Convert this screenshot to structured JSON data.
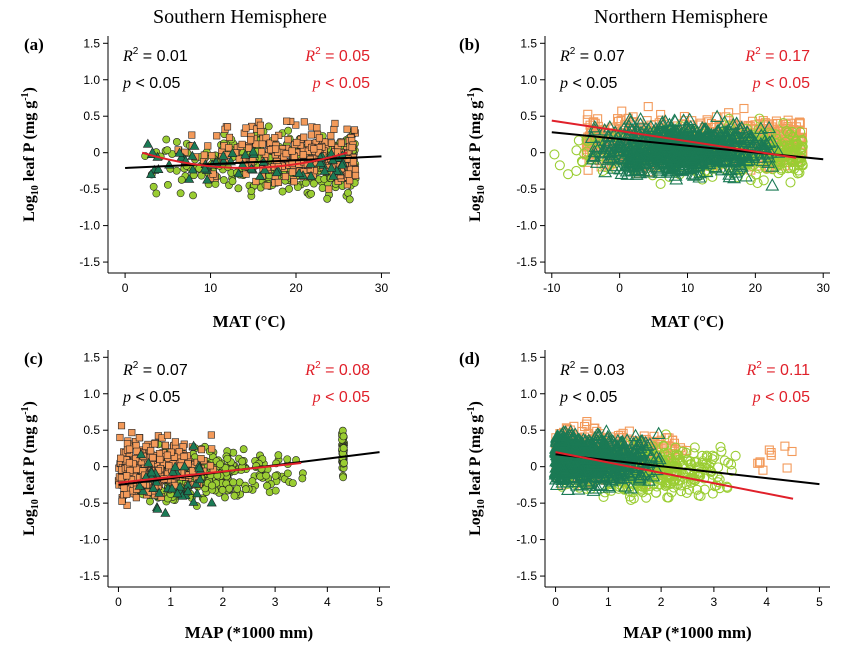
{
  "figure": {
    "column_titles": [
      "Southern Hemisphere",
      "Northern Hemisphere"
    ],
    "legend_note": "Point colours: dark green = trees/needle group, yellow-green = broadleaf group, orange = shrubs/herbs group (markers: Southern filled, Northern open)"
  },
  "colors": {
    "dark_green": "#1b7a55",
    "yellow_green": "#9acd32",
    "orange": "#f39a5a",
    "fit_all": "#000000",
    "fit_subset": "#e0202a"
  },
  "chart_data": [
    {
      "panel": "(a)",
      "type": "scatter",
      "hemisphere": "Southern Hemisphere",
      "xlabel": "MAT (°C)",
      "ylabel_main": "Log",
      "ylabel_sub": "10",
      "ylabel_rest": " leaf P (mg g",
      "ylabel_sup": "-1",
      "ylabel_end": ")",
      "xlim": [
        -2,
        31
      ],
      "ylim": [
        -1.65,
        1.6
      ],
      "xticks": [
        0,
        10,
        20,
        30
      ],
      "xtick_labels": [
        "0",
        "10",
        "20",
        "30"
      ],
      "yticks": [
        -1.5,
        -1.0,
        -0.5,
        0,
        0.5,
        1.0,
        1.5
      ],
      "ytick_labels": [
        "-1.5",
        "-1.0",
        "-0.5",
        "0",
        "0.5",
        "1.0",
        "1.5"
      ],
      "marker_style": "filled",
      "fit_black": {
        "x": [
          0,
          30
        ],
        "y": [
          -0.21,
          -0.05
        ]
      },
      "fit_red": {
        "x": [
          2,
          26
        ],
        "y": [
          0.0,
          0.0
        ],
        "shape": "u",
        "xmid": 14,
        "ymid": -0.21
      },
      "annotation_black": {
        "r2": "0.01",
        "p": "p < 0.05"
      },
      "annotation_red": {
        "r2": "0.05",
        "p": "p < 0.05"
      },
      "clusters": [
        {
          "color": "yellow_green",
          "shape": "circle",
          "n": 420,
          "x_range": [
            2,
            27
          ],
          "y_center": -0.15,
          "y_spread": 0.35,
          "x_weight": "high"
        },
        {
          "color": "orange",
          "shape": "square",
          "n": 280,
          "x_range": [
            5,
            27
          ],
          "y_center": -0.05,
          "y_spread": 0.35,
          "x_weight": "high"
        },
        {
          "color": "dark_green",
          "shape": "triangle",
          "n": 60,
          "x_range": [
            2,
            26
          ],
          "y_center": -0.15,
          "y_spread": 0.2,
          "x_weight": "flat"
        }
      ]
    },
    {
      "panel": "(b)",
      "type": "scatter",
      "hemisphere": "Northern Hemisphere",
      "xlabel": "MAT (°C)",
      "ylabel_main": "Log",
      "ylabel_sub": "10",
      "ylabel_rest": " leaf P (mg g",
      "ylabel_sup": "-1",
      "ylabel_end": ")",
      "xlim": [
        -11,
        31
      ],
      "ylim": [
        -1.65,
        1.6
      ],
      "xticks": [
        -10,
        0,
        10,
        20,
        30
      ],
      "xtick_labels": [
        "-10",
        "0",
        "10",
        "20",
        "30"
      ],
      "yticks": [
        -1.5,
        -1.0,
        -0.5,
        0,
        0.5,
        1.0,
        1.5
      ],
      "ytick_labels": [
        "-1.5",
        "-1.0",
        "-0.5",
        "0",
        "0.5",
        "1.0",
        "1.5"
      ],
      "marker_style": "open",
      "fit_black": {
        "x": [
          -10,
          30
        ],
        "y": [
          0.28,
          -0.09
        ]
      },
      "fit_red": {
        "x": [
          -10,
          26
        ],
        "y": [
          0.44,
          -0.07
        ]
      },
      "annotation_black": {
        "r2": "0.07",
        "p": "p < 0.05"
      },
      "annotation_red": {
        "r2": "0.17",
        "p": "p < 0.05"
      },
      "clusters": [
        {
          "color": "orange",
          "shape": "square",
          "n": 700,
          "x_range": [
            -5,
            27
          ],
          "y_center": 0.15,
          "y_spread": 0.3,
          "x_weight": "flat"
        },
        {
          "color": "yellow_green",
          "shape": "circle",
          "n": 420,
          "x_range": [
            -10,
            27
          ],
          "y_center": 0.0,
          "y_spread": 0.3,
          "x_weight": "high"
        },
        {
          "color": "dark_green",
          "shape": "triangle",
          "n": 750,
          "x_range": [
            -5,
            24
          ],
          "y_center": 0.05,
          "y_spread": 0.3,
          "x_weight": "mid"
        }
      ]
    },
    {
      "panel": "(c)",
      "type": "scatter",
      "hemisphere": "Southern Hemisphere",
      "xlabel": "MAP (*1000 mm)",
      "ylabel_main": "Log",
      "ylabel_sub": "10",
      "ylabel_rest": " leaf P (mg g",
      "ylabel_sup": "-1",
      "ylabel_end": ")",
      "xlim": [
        -0.2,
        5.2
      ],
      "ylim": [
        -1.65,
        1.6
      ],
      "xticks": [
        0,
        1,
        2,
        3,
        4,
        5
      ],
      "xtick_labels": [
        "0",
        "1",
        "2",
        "3",
        "4",
        "5"
      ],
      "yticks": [
        -1.5,
        -1.0,
        -0.5,
        0,
        0.5,
        1.0,
        1.5
      ],
      "ytick_labels": [
        "-1.5",
        "-1.0",
        "-0.5",
        "0",
        "0.5",
        "1.0",
        "1.5"
      ],
      "marker_style": "filled",
      "fit_black": {
        "x": [
          0,
          5
        ],
        "y": [
          -0.25,
          0.2
        ]
      },
      "fit_red": {
        "x": [
          0,
          3.5
        ],
        "y": [
          -0.22,
          0.05
        ]
      },
      "annotation_black": {
        "r2": "0.07",
        "p": "p < 0.05"
      },
      "annotation_red": {
        "r2": "0.08",
        "p": "p < 0.05"
      },
      "clusters": [
        {
          "color": "yellow_green",
          "shape": "circle",
          "n": 500,
          "x_range": [
            0.3,
            3.6
          ],
          "y_center": -0.1,
          "y_spread": 0.3,
          "x_weight": "low"
        },
        {
          "color": "orange",
          "shape": "square",
          "n": 300,
          "x_range": [
            0.0,
            2.0
          ],
          "y_center": 0.0,
          "y_spread": 0.35,
          "x_weight": "low"
        },
        {
          "color": "dark_green",
          "shape": "triangle",
          "n": 40,
          "x_range": [
            0.4,
            1.8
          ],
          "y_center": -0.3,
          "y_spread": 0.35,
          "x_weight": "flat"
        },
        {
          "color": "yellow_green",
          "shape": "circle",
          "n": 60,
          "x_range": [
            4.28,
            4.32
          ],
          "y_center": 0.2,
          "y_spread": 0.25,
          "x_weight": "flat"
        }
      ]
    },
    {
      "panel": "(d)",
      "type": "scatter",
      "hemisphere": "Northern Hemisphere",
      "xlabel": "MAP (*1000 mm)",
      "ylabel_main": "Log",
      "ylabel_sub": "10",
      "ylabel_rest": " leaf P (mg g",
      "ylabel_sup": "-1",
      "ylabel_end": ")",
      "xlim": [
        -0.2,
        5.2
      ],
      "ylim": [
        -1.65,
        1.6
      ],
      "xticks": [
        0,
        1,
        2,
        3,
        4,
        5
      ],
      "xtick_labels": [
        "0",
        "1",
        "2",
        "3",
        "4",
        "5"
      ],
      "yticks": [
        -1.5,
        -1.0,
        -0.5,
        0,
        0.5,
        1.0,
        1.5
      ],
      "ytick_labels": [
        "-1.5",
        "-1.0",
        "-0.5",
        "0",
        "0.5",
        "1.0",
        "1.5"
      ],
      "marker_style": "open",
      "fit_black": {
        "x": [
          0,
          5
        ],
        "y": [
          0.17,
          -0.24
        ]
      },
      "fit_red": {
        "x": [
          0,
          4.5
        ],
        "y": [
          0.2,
          -0.44
        ]
      },
      "annotation_black": {
        "r2": "0.03",
        "p": "p < 0.05"
      },
      "annotation_red": {
        "r2": "0.11",
        "p": "p < 0.05"
      },
      "clusters": [
        {
          "color": "orange",
          "shape": "square",
          "n": 600,
          "x_range": [
            0.0,
            2.6
          ],
          "y_center": 0.15,
          "y_spread": 0.3,
          "x_weight": "low"
        },
        {
          "color": "yellow_green",
          "shape": "circle",
          "n": 420,
          "x_range": [
            0.0,
            3.5
          ],
          "y_center": -0.05,
          "y_spread": 0.3,
          "x_weight": "mid"
        },
        {
          "color": "dark_green",
          "shape": "triangle",
          "n": 700,
          "x_range": [
            0.0,
            2.0
          ],
          "y_center": 0.1,
          "y_spread": 0.3,
          "x_weight": "low"
        },
        {
          "color": "orange",
          "shape": "square",
          "n": 10,
          "x_range": [
            3.8,
            4.6
          ],
          "y_center": 0.15,
          "y_spread": 0.2,
          "x_weight": "flat"
        }
      ]
    }
  ]
}
